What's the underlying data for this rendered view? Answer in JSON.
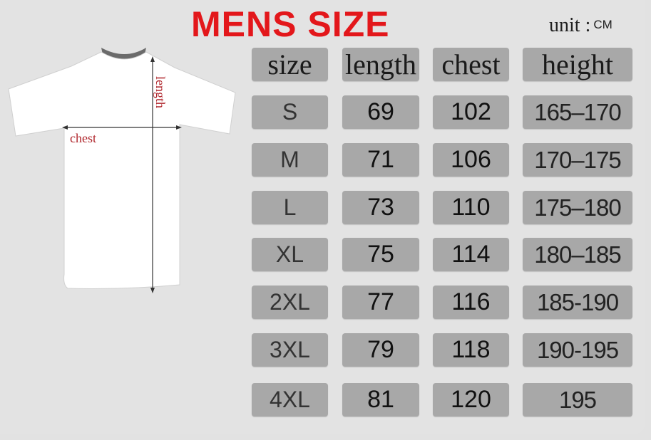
{
  "title": "MENS SIZE",
  "unit": {
    "label": "unit",
    "value": "CM"
  },
  "diagram": {
    "length_label": "length",
    "chest_label": "chest"
  },
  "colors": {
    "title": "#e3171b",
    "cell": "#a8a8a8",
    "background": "#e2e2e2"
  },
  "table": {
    "headers": [
      "size",
      "length",
      "chest",
      "height"
    ],
    "rows": [
      [
        "S",
        "69",
        "102",
        "165–170"
      ],
      [
        "M",
        "71",
        "106",
        "170–175"
      ],
      [
        "L",
        "73",
        "110",
        "175–180"
      ],
      [
        "XL",
        "75",
        "114",
        "180–185"
      ],
      [
        "2XL",
        "77",
        "116",
        "185-190"
      ],
      [
        "3XL",
        "79",
        "118",
        "190-195"
      ],
      [
        "4XL",
        "81",
        "120",
        "195"
      ]
    ]
  }
}
